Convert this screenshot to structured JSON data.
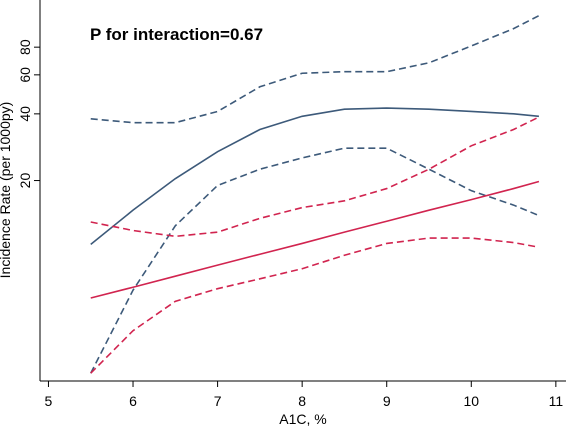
{
  "chart_data": {
    "type": "line",
    "annotation": "P for interaction=0.67",
    "x_label": "A1C, %",
    "y_label": "Incidence Rate (per 1000py)",
    "log_y": true,
    "x": [
      5.5,
      6,
      6.5,
      7,
      7.5,
      8,
      8.5,
      9,
      9.5,
      10,
      10.5,
      10.8
    ],
    "series": [
      {
        "color": "#3d5a7a",
        "dashed": false,
        "values": [
          10.3,
          14.7,
          20.4,
          27,
          34,
          39,
          42,
          42.5,
          42,
          41,
          40,
          39
        ]
      },
      {
        "color": "#3d5a7a",
        "dashed": true,
        "values": [
          38,
          36.5,
          36.5,
          41,
          53,
          61,
          62,
          62,
          68,
          81,
          97,
          111
        ]
      },
      {
        "color": "#3d5a7a",
        "dashed": true,
        "values": [
          2.7,
          6.4,
          12.5,
          19,
          22.5,
          25.3,
          28,
          28,
          22.5,
          18,
          15.5,
          13.9
        ]
      },
      {
        "color": "#d1244f",
        "dashed": false,
        "values": [
          5.9,
          6.6,
          7.4,
          8.3,
          9.3,
          10.4,
          11.7,
          13.1,
          14.7,
          16.4,
          18.4,
          19.8
        ]
      },
      {
        "color": "#d1244f",
        "dashed": true,
        "values": [
          13,
          11.9,
          11.2,
          11.7,
          13.5,
          15.1,
          16.2,
          18.4,
          22.5,
          28.7,
          34,
          38.7
        ]
      },
      {
        "color": "#d1244f",
        "dashed": true,
        "values": [
          2.7,
          4.2,
          5.7,
          6.5,
          7.2,
          8,
          9.2,
          10.4,
          11,
          11,
          10.5,
          10
        ]
      }
    ],
    "xlim": [
      4.9,
      11.12
    ],
    "xticks": [
      5,
      6,
      7,
      8,
      9,
      10,
      11
    ],
    "ylim": [
      2.49,
      124
    ],
    "yticks": [
      20,
      40,
      60,
      80
    ]
  }
}
